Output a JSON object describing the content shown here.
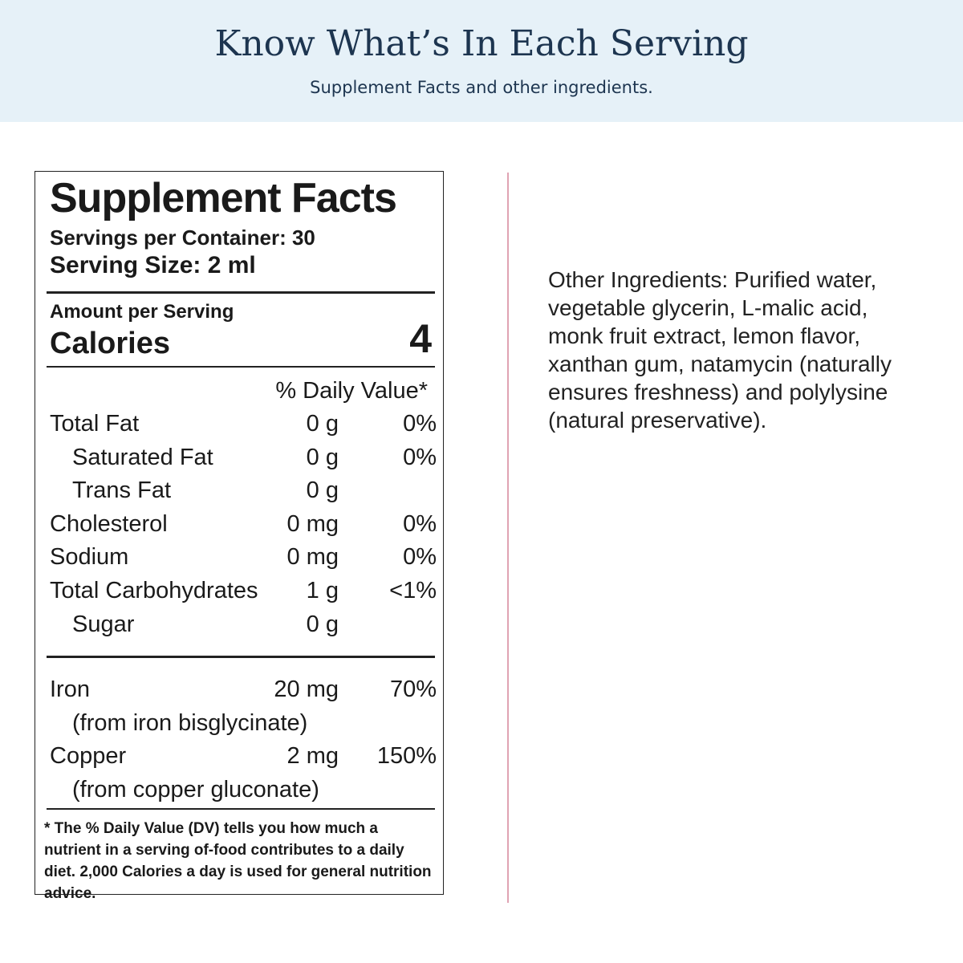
{
  "header": {
    "title": "Know What’s In Each Serving",
    "subtitle": "Supplement Facts and other ingredients."
  },
  "label": {
    "title": "Supplement Facts",
    "servings_per_container": "Servings per Container: 30",
    "serving_size": "Serving Size: 2 ml",
    "amount_per_serving": "Amount per Serving",
    "calories_label": "Calories",
    "calories_value": "4",
    "daily_value_header": "% Daily Value*",
    "rows": [
      {
        "name": "Total Fat",
        "amount": "0 g",
        "dv": "0%",
        "sub": [
          {
            "name": "Saturated Fat",
            "amount": "0 g",
            "dv": "0%"
          },
          {
            "name": "Trans Fat",
            "amount": "0 g"
          }
        ]
      },
      {
        "name": "Cholesterol",
        "amount": "0 mg",
        "dv": "0%"
      },
      {
        "name": "Sodium",
        "amount": "0 mg",
        "dv": "0%"
      },
      {
        "name": "Total Carbohydrates",
        "amount": "1 g",
        "dv": "<1%",
        "sub": [
          {
            "name": "Sugar",
            "amount": "0 g"
          }
        ]
      }
    ],
    "minerals": [
      {
        "name": "Iron",
        "amount": "20 mg",
        "dv": "70%",
        "source": "(from iron bisglycinate)"
      },
      {
        "name": "Copper",
        "amount": "2 mg",
        "dv": "150%",
        "source": "(from copper gluconate)"
      }
    ],
    "footnote": "* The % Daily Value (DV) tells you how much a nutrient in a serving of-food contributes to a daily diet. 2,000 Calories a day is used for general nutrition advice."
  },
  "other_ingredients": {
    "lines": [
      "Other Ingredients:  Purified water,",
      "vegetable glycerin, L-malic acid,",
      "monk fruit extract, lemon flavor,",
      "xanthan gum, natamycin (naturally",
      "ensures freshness) and polylysine",
      "(natural preservative)."
    ]
  }
}
